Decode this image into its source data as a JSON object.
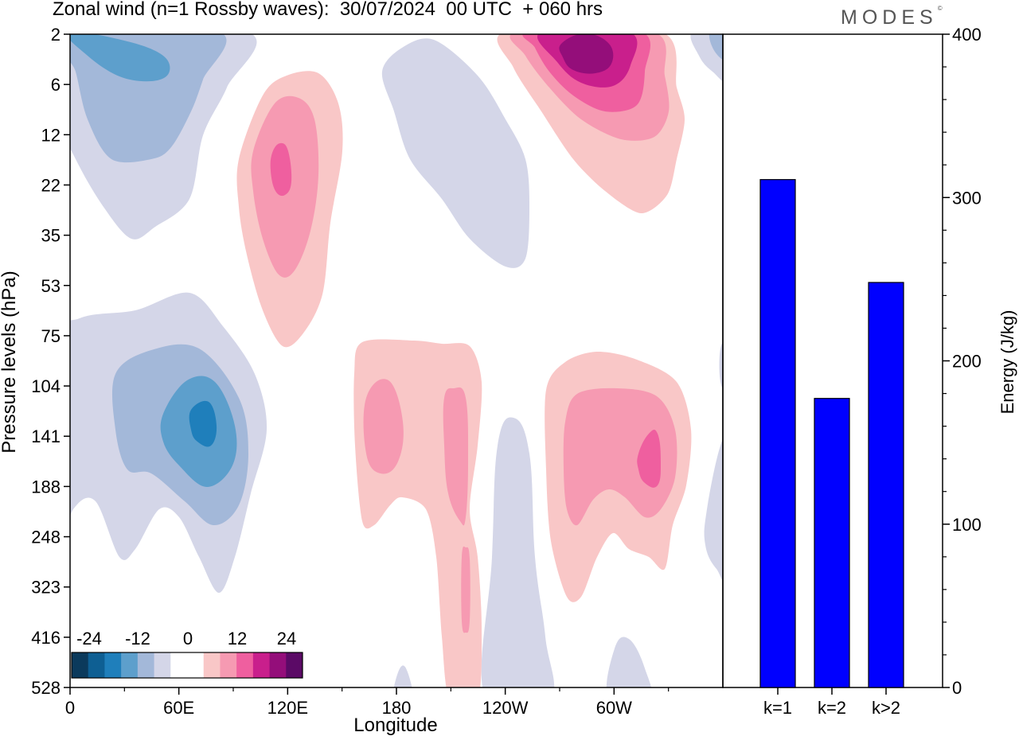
{
  "title": "Zonal wind (n=1 Rossby waves):  30/07/2024  00 UTC  + 060 hrs",
  "brand": "MODES",
  "brand_mark": "©",
  "colors": {
    "background": "#ffffff",
    "bar_fill": "#0000ff",
    "contour_neg": [
      "#0b3a5c",
      "#0e5f93",
      "#1f7fbb",
      "#5d9fcc",
      "#a3b8d9",
      "#d4d6e8"
    ],
    "contour_zero": "#ffffff",
    "contour_pos": [
      "#f9c7c7",
      "#f69ab2",
      "#ef5f9f",
      "#c91f8c",
      "#940e7a",
      "#5b0a66"
    ]
  },
  "chart_data": [
    {
      "type": "heatmap",
      "title": "Zonal wind (n=1 Rossby waves):  30/07/2024  00 UTC  + 060 hrs",
      "xlabel": "Longitude",
      "ylabel": "Pressure levels (hPa)",
      "x_ticks": [
        "0",
        "60E",
        "120E",
        "180",
        "120W",
        "60W"
      ],
      "x_tick_values_deg": [
        0,
        60,
        120,
        180,
        240,
        300
      ],
      "xlim_deg": [
        0,
        360
      ],
      "y_ticks": [
        "2",
        "6",
        "12",
        "22",
        "35",
        "53",
        "75",
        "104",
        "141",
        "188",
        "248",
        "323",
        "416",
        "528"
      ],
      "colorbar": {
        "labels": [
          "-24",
          "-12",
          "0",
          "12",
          "24"
        ],
        "levels": [
          -24,
          -20,
          -16,
          -12,
          -8,
          -4,
          4,
          8,
          12,
          16,
          20,
          24
        ]
      },
      "features": [
        {
          "sign": "negative",
          "lon_deg": 30,
          "pressure_hPa": 5,
          "peak": -16
        },
        {
          "sign": "negative",
          "lon_deg": 75,
          "pressure_hPa": 120,
          "peak": -20
        },
        {
          "sign": "negative",
          "lon_deg": 240,
          "pressure_hPa": 22,
          "peak": -4
        },
        {
          "sign": "negative",
          "lon_deg": 245,
          "pressure_hPa": 250,
          "peak": -4
        },
        {
          "sign": "positive",
          "lon_deg": 115,
          "pressure_hPa": 18,
          "peak": 12
        },
        {
          "sign": "positive",
          "lon_deg": 285,
          "pressure_hPa": 3,
          "peak": 24
        },
        {
          "sign": "positive",
          "lon_deg": 175,
          "pressure_hPa": 130,
          "peak": 8
        },
        {
          "sign": "positive",
          "lon_deg": 210,
          "pressure_hPa": 180,
          "peak": 8
        },
        {
          "sign": "positive",
          "lon_deg": 315,
          "pressure_hPa": 150,
          "peak": 12
        }
      ],
      "grid": false
    },
    {
      "type": "bar",
      "categories": [
        "k=1",
        "k=2",
        "k>2"
      ],
      "values": [
        311,
        177,
        248
      ],
      "ylabel": "Energy (J/kg)",
      "ylim": [
        0,
        400
      ],
      "y_ticks": [
        "0",
        "100",
        "200",
        "300",
        "400"
      ],
      "y_tick_values": [
        0,
        100,
        200,
        300,
        400
      ],
      "grid": false,
      "legend": "none"
    }
  ]
}
